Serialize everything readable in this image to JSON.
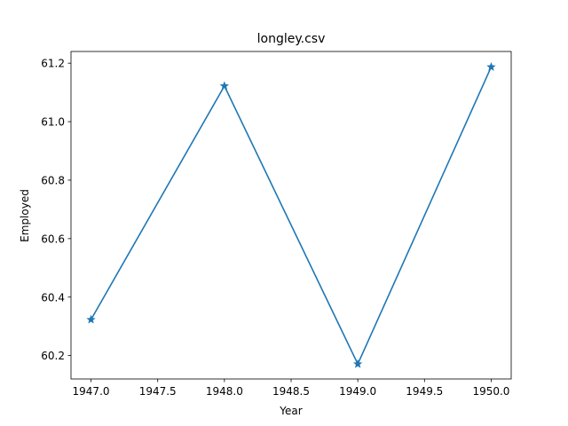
{
  "chart_data": {
    "type": "line",
    "title": "longley.csv",
    "xlabel": "Year",
    "ylabel": "Employed",
    "x": [
      1947,
      1948,
      1949,
      1950
    ],
    "series": [
      {
        "values": [
          60.323,
          61.122,
          60.171,
          61.187
        ],
        "color": "#1f77b4",
        "marker": "star"
      }
    ],
    "xlim": [
      1946.85,
      1950.15
    ],
    "ylim": [
      60.12,
      61.24
    ],
    "xticks": [
      1947.0,
      1947.5,
      1948.0,
      1948.5,
      1949.0,
      1949.5,
      1950.0
    ],
    "xtick_labels": [
      "1947.0",
      "1947.5",
      "1948.0",
      "1948.5",
      "1949.0",
      "1949.5",
      "1950.0"
    ],
    "yticks": [
      60.2,
      60.4,
      60.6,
      60.8,
      61.0,
      61.2
    ],
    "ytick_labels": [
      "60.2",
      "60.4",
      "60.6",
      "60.8",
      "61.0",
      "61.2"
    ],
    "grid": false,
    "legend": false
  }
}
